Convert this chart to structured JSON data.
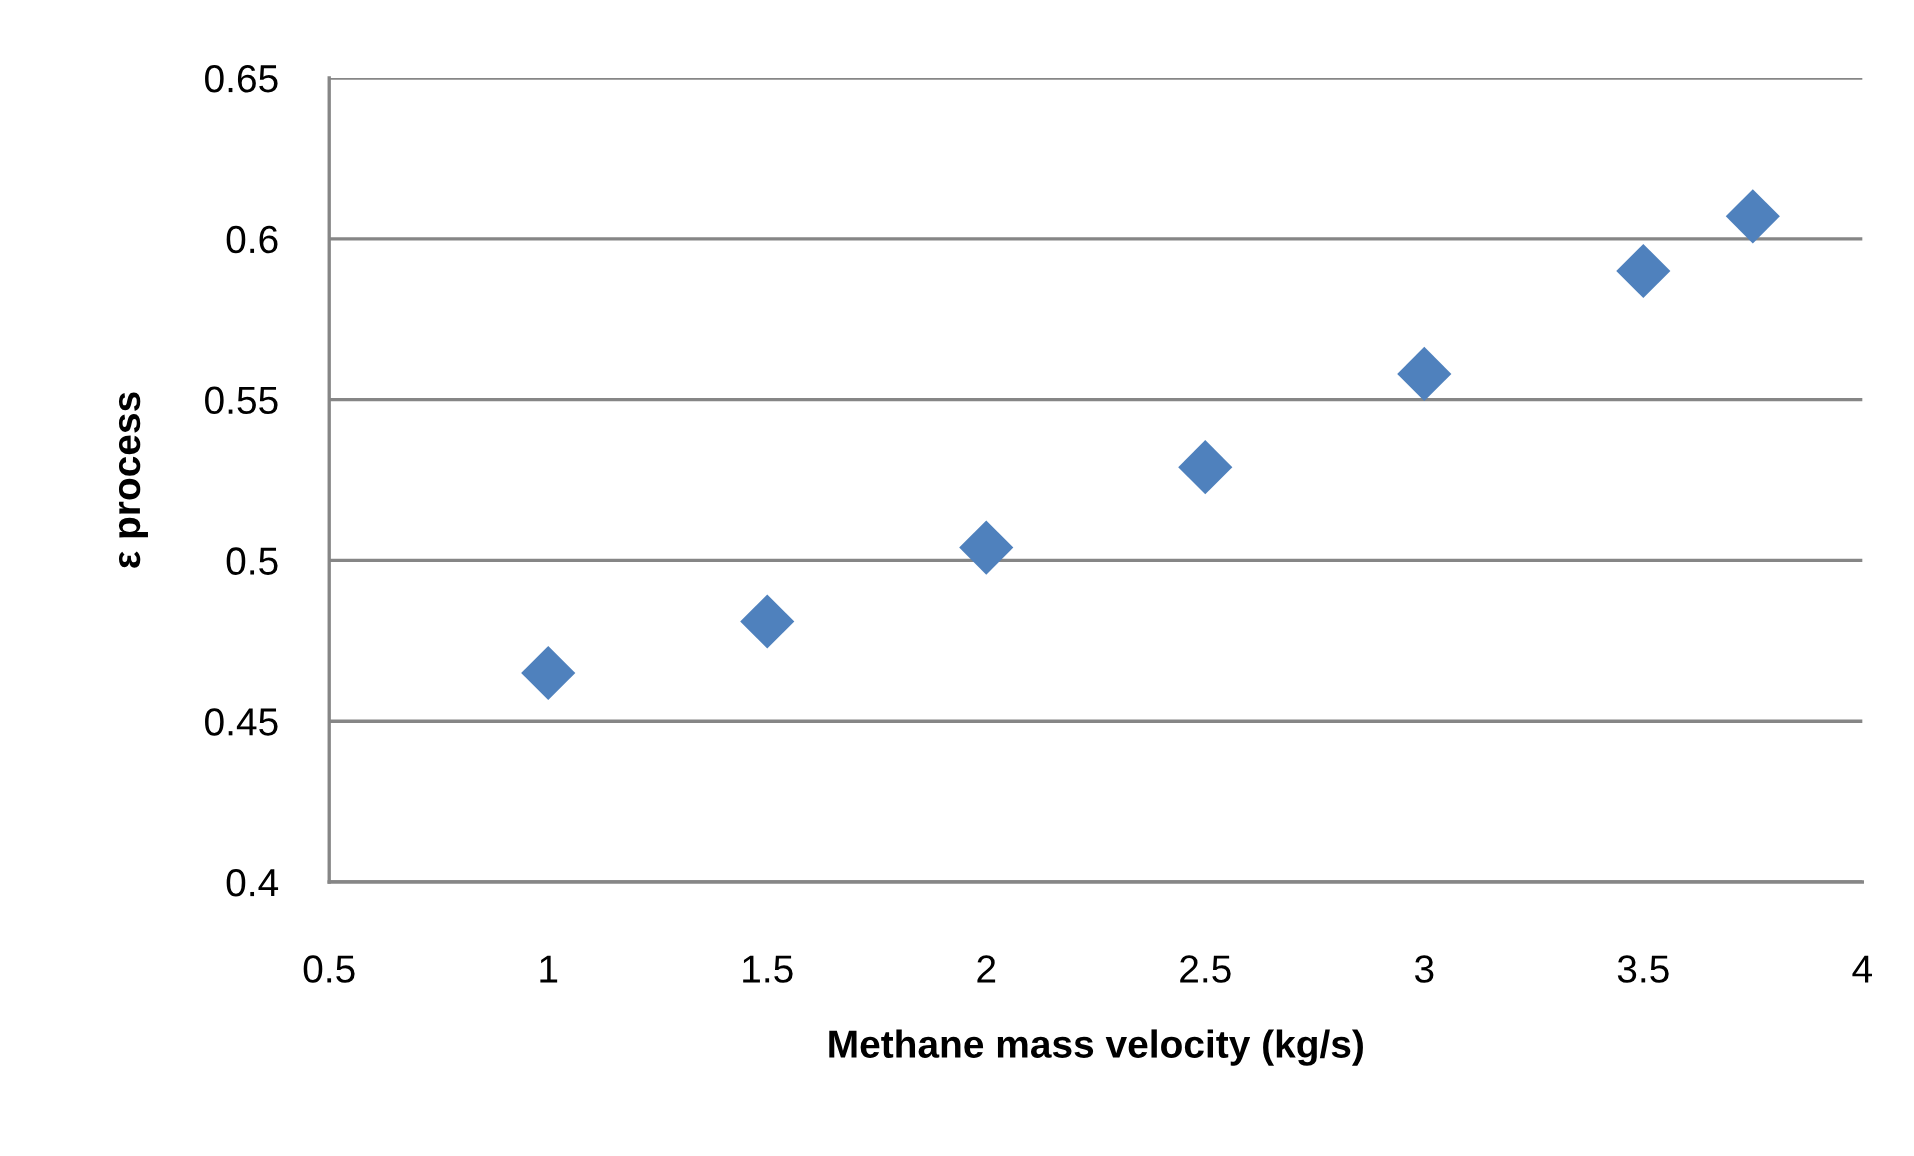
{
  "chart_data": {
    "type": "scatter",
    "xlabel": "Methane mass velocity (kg/s)",
    "ylabel": "ε process",
    "x": [
      1,
      1.5,
      2,
      2.5,
      3,
      3.5,
      3.75
    ],
    "values": [
      0.465,
      0.481,
      0.504,
      0.529,
      0.558,
      0.59,
      0.607
    ],
    "color": "#4f81bd",
    "marker": "diamond",
    "xlim": [
      0.5,
      4
    ],
    "xticks": [
      0.5,
      1,
      1.5,
      2,
      2.5,
      3,
      3.5,
      4
    ],
    "ylim": [
      0.4,
      0.65
    ],
    "yticks": [
      0.4,
      0.45,
      0.5,
      0.55,
      0.6,
      0.65
    ],
    "grid": "y"
  }
}
